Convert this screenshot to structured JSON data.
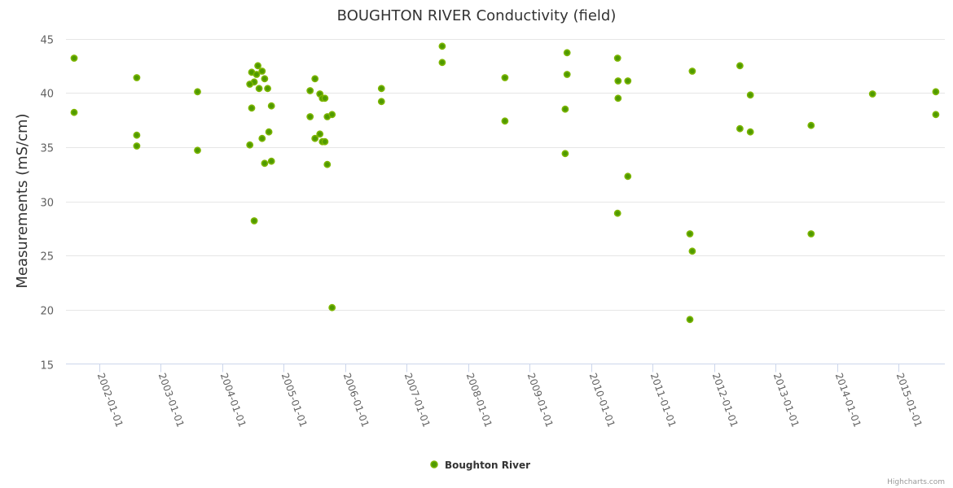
{
  "chart_data": {
    "type": "scatter",
    "title": "BOUGHTON RIVER Conductivity (field)",
    "xlabel": "",
    "ylabel": "Measurements (mS/cm)",
    "ylim": [
      15,
      45
    ],
    "yticks": [
      15,
      20,
      25,
      30,
      35,
      40,
      45
    ],
    "xlim": [
      "2001-06-01",
      "2015-10-01"
    ],
    "xticks": [
      "2002-01-01",
      "2003-01-01",
      "2004-01-01",
      "2005-01-01",
      "2006-01-01",
      "2007-01-01",
      "2008-01-01",
      "2009-01-01",
      "2010-01-01",
      "2011-01-01",
      "2012-01-01",
      "2013-01-01",
      "2014-01-01",
      "2015-01-01"
    ],
    "grid": true,
    "legend_position": "bottom-center",
    "series": [
      {
        "name": "Boughton River",
        "color": "#7cb500",
        "marker_center": "#4f9a00",
        "points": [
          {
            "x": "2001-08-04",
            "y": 43.2
          },
          {
            "x": "2001-08-04",
            "y": 38.2
          },
          {
            "x": "2002-08-11",
            "y": 41.4
          },
          {
            "x": "2002-08-11",
            "y": 36.1
          },
          {
            "x": "2002-08-11",
            "y": 35.1
          },
          {
            "x": "2003-08-07",
            "y": 40.1
          },
          {
            "x": "2003-08-07",
            "y": 34.7
          },
          {
            "x": "2004-07-31",
            "y": 42.5
          },
          {
            "x": "2004-06-24",
            "y": 41.9
          },
          {
            "x": "2004-07-23",
            "y": 41.7
          },
          {
            "x": "2004-08-25",
            "y": 42.0
          },
          {
            "x": "2004-09-09",
            "y": 41.3
          },
          {
            "x": "2004-07-09",
            "y": 41.0
          },
          {
            "x": "2004-06-13",
            "y": 40.8
          },
          {
            "x": "2004-08-07",
            "y": 40.4
          },
          {
            "x": "2004-09-27",
            "y": 40.4
          },
          {
            "x": "2004-06-24",
            "y": 38.6
          },
          {
            "x": "2004-10-19",
            "y": 38.8
          },
          {
            "x": "2004-10-04",
            "y": 36.4
          },
          {
            "x": "2004-08-25",
            "y": 35.8
          },
          {
            "x": "2004-06-13",
            "y": 35.2
          },
          {
            "x": "2004-09-09",
            "y": 33.5
          },
          {
            "x": "2004-10-19",
            "y": 33.7
          },
          {
            "x": "2004-07-09",
            "y": 28.2
          },
          {
            "x": "2005-07-05",
            "y": 41.3
          },
          {
            "x": "2005-06-06",
            "y": 40.2
          },
          {
            "x": "2005-08-03",
            "y": 39.9
          },
          {
            "x": "2005-08-18",
            "y": 39.5
          },
          {
            "x": "2005-09-02",
            "y": 39.5
          },
          {
            "x": "2005-06-06",
            "y": 37.8
          },
          {
            "x": "2005-09-16",
            "y": 37.8
          },
          {
            "x": "2005-10-15",
            "y": 38.0
          },
          {
            "x": "2005-08-03",
            "y": 36.2
          },
          {
            "x": "2005-07-05",
            "y": 35.8
          },
          {
            "x": "2005-08-18",
            "y": 35.5
          },
          {
            "x": "2005-09-02",
            "y": 35.5
          },
          {
            "x": "2005-09-16",
            "y": 33.4
          },
          {
            "x": "2005-10-15",
            "y": 20.2
          },
          {
            "x": "2006-08-04",
            "y": 40.4
          },
          {
            "x": "2006-08-04",
            "y": 39.2
          },
          {
            "x": "2007-07-31",
            "y": 44.3
          },
          {
            "x": "2007-07-31",
            "y": 42.8
          },
          {
            "x": "2008-08-07",
            "y": 41.4
          },
          {
            "x": "2008-08-07",
            "y": 37.4
          },
          {
            "x": "2009-08-11",
            "y": 43.7
          },
          {
            "x": "2009-08-11",
            "y": 41.7
          },
          {
            "x": "2009-07-31",
            "y": 38.5
          },
          {
            "x": "2009-07-31",
            "y": 34.4
          },
          {
            "x": "2010-06-07",
            "y": 43.2
          },
          {
            "x": "2010-06-10",
            "y": 41.1
          },
          {
            "x": "2010-08-07",
            "y": 41.1
          },
          {
            "x": "2010-06-10",
            "y": 39.5
          },
          {
            "x": "2010-08-07",
            "y": 32.3
          },
          {
            "x": "2010-06-07",
            "y": 28.9
          },
          {
            "x": "2011-08-25",
            "y": 42.0
          },
          {
            "x": "2011-08-11",
            "y": 27.0
          },
          {
            "x": "2011-08-25",
            "y": 25.4
          },
          {
            "x": "2011-08-11",
            "y": 19.1
          },
          {
            "x": "2012-06-03",
            "y": 42.5
          },
          {
            "x": "2012-08-04",
            "y": 39.8
          },
          {
            "x": "2012-06-03",
            "y": 36.7
          },
          {
            "x": "2012-08-04",
            "y": 36.4
          },
          {
            "x": "2013-07-31",
            "y": 37.0
          },
          {
            "x": "2013-07-31",
            "y": 27.0
          },
          {
            "x": "2014-07-31",
            "y": 39.9
          },
          {
            "x": "2015-08-11",
            "y": 40.1
          },
          {
            "x": "2015-08-11",
            "y": 38.0
          }
        ]
      }
    ]
  },
  "credits": "Highcharts.com"
}
